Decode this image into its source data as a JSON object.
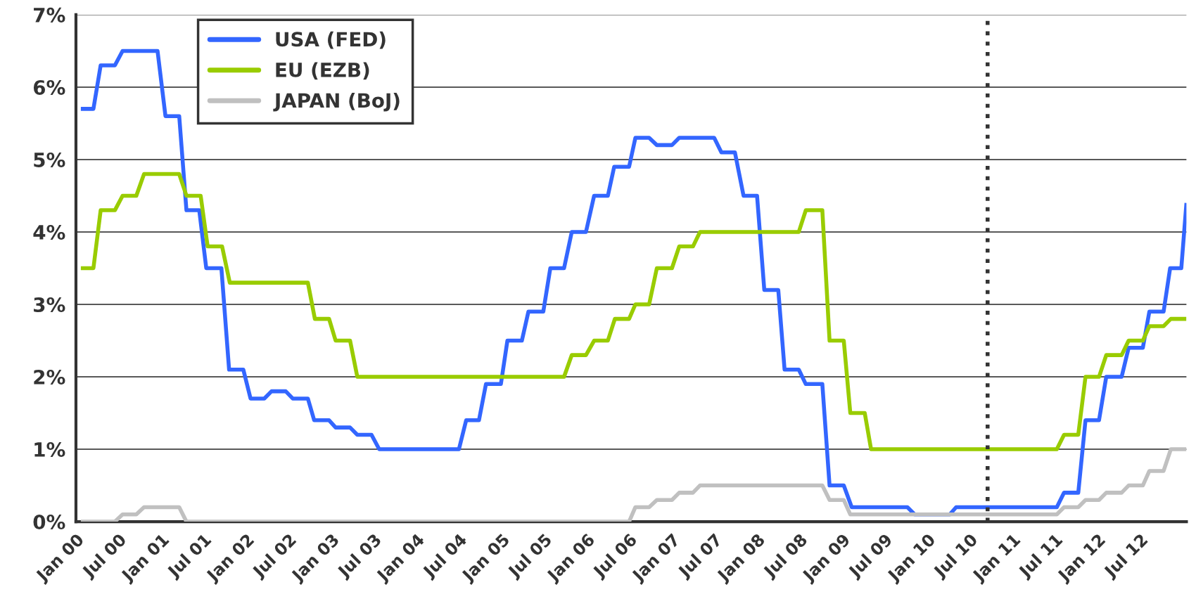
{
  "chart_data": {
    "type": "line",
    "xlim": [
      "2000-01-01",
      "2013-01-16"
    ],
    "xticks": [
      {
        "value": "2000-01",
        "label": "Jan 00"
      },
      {
        "value": "2000-07",
        "label": "Jul 00"
      },
      {
        "value": "2001-01",
        "label": "Jan 01"
      },
      {
        "value": "2001-07",
        "label": "Jul 01"
      },
      {
        "value": "2002-01",
        "label": "Jan 02"
      },
      {
        "value": "2002-07",
        "label": "Jul 02"
      },
      {
        "value": "2003-01",
        "label": "Jan 03"
      },
      {
        "value": "2003-07",
        "label": "Jul 03"
      },
      {
        "value": "2004-01",
        "label": "Jan 04"
      },
      {
        "value": "2004-07",
        "label": "Jul 04"
      },
      {
        "value": "2005-01",
        "label": "Jan 05"
      },
      {
        "value": "2005-07",
        "label": "Jul 05"
      },
      {
        "value": "2006-01",
        "label": "Jan 06"
      },
      {
        "value": "2006-07",
        "label": "Jul 06"
      },
      {
        "value": "2007-01",
        "label": "Jan 07"
      },
      {
        "value": "2007-07",
        "label": "Jul 07"
      },
      {
        "value": "2008-01",
        "label": "Jan 08"
      },
      {
        "value": "2008-07",
        "label": "Jul 08"
      },
      {
        "value": "2009-01",
        "label": "Jan 09"
      },
      {
        "value": "2009-07",
        "label": "Jul 09"
      },
      {
        "value": "2010-01",
        "label": "Jan 10"
      },
      {
        "value": "2010-07",
        "label": "Jul 10"
      },
      {
        "value": "2011-01",
        "label": "Jan 11"
      },
      {
        "value": "2011-07",
        "label": "Jul 11"
      },
      {
        "value": "2012-01",
        "label": "Jan 12"
      },
      {
        "value": "2012-07",
        "label": "Jul 12"
      }
    ],
    "ylim": [
      0,
      7
    ],
    "yticks": [
      {
        "value": 0,
        "label": "0%"
      },
      {
        "value": 1,
        "label": "1%"
      },
      {
        "value": 2,
        "label": "2%"
      },
      {
        "value": 3,
        "label": "3%"
      },
      {
        "value": 4,
        "label": "4%"
      },
      {
        "value": 5,
        "label": "5%"
      },
      {
        "value": 6,
        "label": "6%"
      },
      {
        "value": 7,
        "label": "7%"
      }
    ],
    "grid": "y",
    "legend": "top left",
    "line_style": "solid",
    "marker": "none",
    "ref_lines": [
      {
        "axis": "x",
        "value": "2010-09-16",
        "color": "#333333",
        "line_style": "dotted"
      }
    ],
    "series": [
      {
        "name": "USA (FED)",
        "color": "#3366ff",
        "x": [
          "2000-01-22",
          "2000-03-16",
          "2000-04-16",
          "2000-06-16",
          "2000-07-19",
          "2000-12-16",
          "2001-01-19",
          "2001-03-19",
          "2001-04-19",
          "2001-06-13",
          "2001-07-13",
          "2001-09-16",
          "2001-10-19",
          "2001-12-19",
          "2002-01-19",
          "2002-03-19",
          "2002-04-19",
          "2002-06-19",
          "2002-07-19",
          "2002-09-22",
          "2002-10-19",
          "2002-12-22",
          "2003-01-19",
          "2003-03-22",
          "2003-04-22",
          "2003-06-22",
          "2003-07-25",
          "2004-07-01",
          "2004-08-01",
          "2004-09-25",
          "2004-10-25",
          "2004-12-28",
          "2005-01-25",
          "2005-03-28",
          "2005-04-25",
          "2005-06-28",
          "2005-07-28",
          "2005-09-25",
          "2005-10-28",
          "2005-12-28",
          "2006-02-01",
          "2006-04-01",
          "2006-04-28",
          "2006-07-01",
          "2006-07-28",
          "2006-09-25",
          "2006-10-28",
          "2007-01-01",
          "2007-02-01",
          "2007-07-01",
          "2007-08-01",
          "2007-09-28",
          "2007-11-04",
          "2008-01-01",
          "2008-02-01",
          "2008-04-01",
          "2008-04-28",
          "2008-06-28",
          "2008-07-28",
          "2008-10-07",
          "2008-11-07",
          "2009-01-07",
          "2009-02-10",
          "2009-10-07",
          "2009-11-07",
          "2010-04-07",
          "2010-05-04",
          "2011-07-10",
          "2011-08-10",
          "2011-10-10",
          "2011-11-10",
          "2012-01-07",
          "2012-02-07",
          "2012-04-13",
          "2012-05-13",
          "2012-07-13",
          "2012-08-10",
          "2012-10-10",
          "2012-11-07",
          "2012-12-25",
          "2013-01-16"
        ],
        "values": [
          5.7,
          5.7,
          6.3,
          6.3,
          6.5,
          6.5,
          5.6,
          5.6,
          4.3,
          4.3,
          3.5,
          3.5,
          2.1,
          2.1,
          1.7,
          1.7,
          1.8,
          1.8,
          1.7,
          1.7,
          1.4,
          1.4,
          1.3,
          1.3,
          1.2,
          1.2,
          1.0,
          1.0,
          1.4,
          1.4,
          1.9,
          1.9,
          2.5,
          2.5,
          2.9,
          2.9,
          3.5,
          3.5,
          4.0,
          4.0,
          4.5,
          4.5,
          4.9,
          4.9,
          5.3,
          5.3,
          5.2,
          5.2,
          5.3,
          5.3,
          5.1,
          5.1,
          4.5,
          4.5,
          3.2,
          3.2,
          2.1,
          2.1,
          1.9,
          1.9,
          0.5,
          0.5,
          0.2,
          0.2,
          0.1,
          0.1,
          0.2,
          0.2,
          0.4,
          0.4,
          1.4,
          1.4,
          2.0,
          2.0,
          2.4,
          2.4,
          2.9,
          2.9,
          3.5,
          3.5,
          4.4
        ]
      },
      {
        "name": "EU (EZB)",
        "color": "#99cc00",
        "x": [
          "2000-01-22",
          "2000-03-16",
          "2000-04-16",
          "2000-06-16",
          "2000-07-19",
          "2000-09-16",
          "2000-10-19",
          "2001-03-19",
          "2001-04-19",
          "2001-06-19",
          "2001-07-19",
          "2001-09-19",
          "2001-10-22",
          "2002-09-22",
          "2002-10-22",
          "2002-12-22",
          "2003-01-19",
          "2003-03-22",
          "2003-04-22",
          "2005-09-25",
          "2005-10-28",
          "2005-12-28",
          "2006-02-01",
          "2006-04-01",
          "2006-05-01",
          "2006-07-01",
          "2006-07-28",
          "2006-09-25",
          "2006-10-28",
          "2007-01-01",
          "2007-02-01",
          "2007-04-01",
          "2007-05-01",
          "2008-06-28",
          "2008-07-28",
          "2008-10-07",
          "2008-11-07",
          "2009-01-07",
          "2009-02-04",
          "2009-04-07",
          "2009-05-04",
          "2011-07-10",
          "2011-08-10",
          "2011-10-10",
          "2011-11-10",
          "2012-01-07",
          "2012-02-07",
          "2012-04-13",
          "2012-05-13",
          "2012-07-13",
          "2012-08-10",
          "2012-10-10",
          "2012-11-10",
          "2013-01-16"
        ],
        "values": [
          3.5,
          3.5,
          4.3,
          4.3,
          4.5,
          4.5,
          4.8,
          4.8,
          4.5,
          4.5,
          3.8,
          3.8,
          3.3,
          3.3,
          2.8,
          2.8,
          2.5,
          2.5,
          2.0,
          2.0,
          2.3,
          2.3,
          2.5,
          2.5,
          2.8,
          2.8,
          3.0,
          3.0,
          3.5,
          3.5,
          3.8,
          3.8,
          4.0,
          4.0,
          4.3,
          4.3,
          2.5,
          2.5,
          1.5,
          1.5,
          1.0,
          1.0,
          1.2,
          1.2,
          2.0,
          2.0,
          2.3,
          2.3,
          2.5,
          2.5,
          2.7,
          2.7,
          2.8,
          2.8
        ]
      },
      {
        "name": "JAPAN (BoJ)",
        "color": "#c0c0c0",
        "x": [
          "2000-01-22",
          "2000-06-16",
          "2000-07-19",
          "2000-09-16",
          "2000-10-19",
          "2001-03-19",
          "2001-04-19",
          "2006-07-01",
          "2006-07-28",
          "2006-09-25",
          "2006-10-28",
          "2007-01-01",
          "2007-02-01",
          "2007-04-01",
          "2007-05-01",
          "2008-10-07",
          "2008-11-07",
          "2009-01-07",
          "2009-02-04",
          "2011-07-10",
          "2011-08-10",
          "2011-10-10",
          "2011-11-10",
          "2012-01-07",
          "2012-02-07",
          "2012-04-13",
          "2012-05-13",
          "2012-07-13",
          "2012-08-10",
          "2012-10-10",
          "2012-11-10",
          "2013-01-16"
        ],
        "values": [
          0,
          0,
          0.1,
          0.1,
          0.2,
          0.2,
          0,
          0,
          0.2,
          0.2,
          0.3,
          0.3,
          0.4,
          0.4,
          0.5,
          0.5,
          0.3,
          0.3,
          0.1,
          0.1,
          0.2,
          0.2,
          0.3,
          0.3,
          0.4,
          0.4,
          0.5,
          0.5,
          0.7,
          0.7,
          1.0,
          1.0
        ]
      }
    ]
  }
}
